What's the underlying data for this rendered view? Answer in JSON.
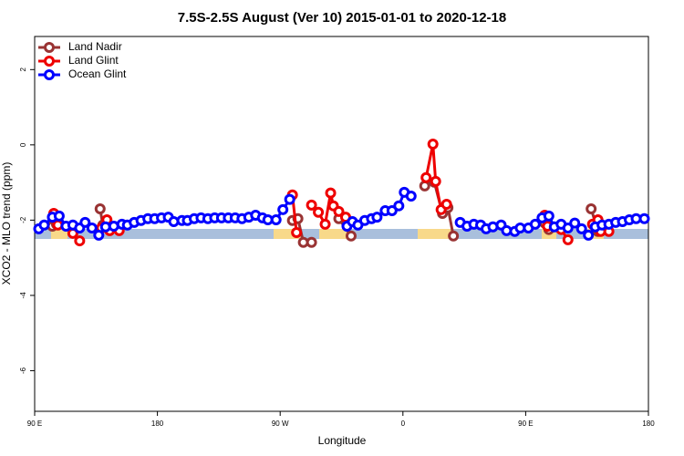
{
  "chart_data": {
    "type": "line",
    "title": "7.5S-2.5S August (Ver 10)   2015-01-01 to 2020-12-18",
    "x_label": "Longitude",
    "y_label": "XCO2 - MLO trend (ppm)",
    "xlim": [
      90,
      540
    ],
    "ylim": [
      -7.08,
      2.88
    ],
    "xticks": [
      {
        "value": 90,
        "label": "90 E"
      },
      180,
      {
        "value": 270,
        "label": "90 W"
      },
      {
        "value": 360,
        "label": "0"
      },
      {
        "value": 450,
        "label": "90 E"
      },
      {
        "value": 540,
        "label": "180"
      }
    ],
    "yticks": [
      -6,
      -4,
      -2,
      0,
      2
    ],
    "legend": "top-left",
    "series": [
      {
        "name": "Land Nadir",
        "color": "#993333",
        "x": [
          103,
          106,
          null,
          138,
          140,
          null,
          279,
          283,
          287,
          293,
          null,
          313,
          322,
          null,
          376,
          383,
          389,
          393,
          397,
          null,
          464,
          467,
          null,
          498,
          503
        ],
        "values": [
          -2.16,
          -2.11,
          null,
          -1.7,
          -2.13,
          null,
          -2.01,
          -1.96,
          -2.59,
          -2.59,
          null,
          -1.96,
          -2.42,
          null,
          -1.09,
          -0.99,
          -1.82,
          -1.67,
          -2.42,
          null,
          -2.08,
          -2.25,
          null,
          -1.7,
          -2.3
        ]
      },
      {
        "name": "Land Glint",
        "color": "#ee0000",
        "x": [
          104,
          107,
          null,
          118,
          123,
          null,
          139,
          143,
          145,
          152,
          null,
          279,
          282,
          null,
          293,
          298,
          303,
          307,
          309,
          313,
          318,
          null,
          377,
          382,
          384,
          388,
          392,
          null,
          464,
          466,
          476,
          481,
          null,
          499,
          503,
          505,
          511
        ],
        "values": [
          -1.82,
          -2.13,
          null,
          -2.35,
          -2.55,
          null,
          -2.21,
          -1.99,
          -2.28,
          -2.28,
          null,
          -1.33,
          -2.33,
          null,
          -1.6,
          -1.79,
          -2.11,
          -1.28,
          -1.62,
          -1.77,
          -1.92,
          null,
          -0.87,
          0.02,
          -0.97,
          -1.72,
          -1.58,
          null,
          -1.87,
          -2.16,
          -2.25,
          -2.52,
          null,
          -2.11,
          -1.99,
          -2.3,
          -2.3
        ]
      },
      {
        "name": "Ocean Glint",
        "color": "#0000ff",
        "x": [
          93,
          97,
          103,
          108,
          113,
          118,
          123,
          127,
          132,
          137,
          142,
          148,
          154,
          158,
          163,
          168,
          173,
          178,
          183,
          188,
          192,
          198,
          202,
          207,
          212,
          217,
          222,
          227,
          232,
          237,
          242,
          247,
          252,
          257,
          261,
          267,
          272,
          277,
          null,
          319,
          323,
          327,
          332,
          337,
          341,
          347,
          352,
          357,
          361,
          366,
          null,
          402,
          407,
          412,
          417,
          421,
          426,
          432,
          436,
          442,
          446,
          452,
          457,
          462,
          467,
          471,
          476,
          481,
          486,
          491,
          496,
          501,
          506,
          511,
          516,
          521,
          526,
          531,
          537
        ],
        "values": [
          -2.23,
          -2.13,
          -1.92,
          -1.89,
          -2.16,
          -2.13,
          -2.21,
          -2.06,
          -2.21,
          -2.4,
          -2.18,
          -2.16,
          -2.11,
          -2.13,
          -2.06,
          -2.01,
          -1.96,
          -1.96,
          -1.94,
          -1.92,
          -2.04,
          -2.01,
          -2.01,
          -1.96,
          -1.94,
          -1.96,
          -1.94,
          -1.94,
          -1.94,
          -1.94,
          -1.96,
          -1.92,
          -1.87,
          -1.94,
          -1.99,
          -1.99,
          -1.72,
          -1.45,
          null,
          -2.16,
          -2.04,
          -2.13,
          -2.01,
          -1.96,
          -1.92,
          -1.75,
          -1.75,
          -1.62,
          -1.26,
          -1.36,
          null,
          -2.06,
          -2.16,
          -2.11,
          -2.13,
          -2.23,
          -2.18,
          -2.13,
          -2.28,
          -2.3,
          -2.21,
          -2.21,
          -2.11,
          -1.94,
          -1.89,
          -2.18,
          -2.11,
          -2.21,
          -2.08,
          -2.23,
          -2.4,
          -2.18,
          -2.13,
          -2.11,
          -2.06,
          -2.04,
          -1.99,
          -1.96,
          -1.96
        ]
      }
    ]
  }
}
